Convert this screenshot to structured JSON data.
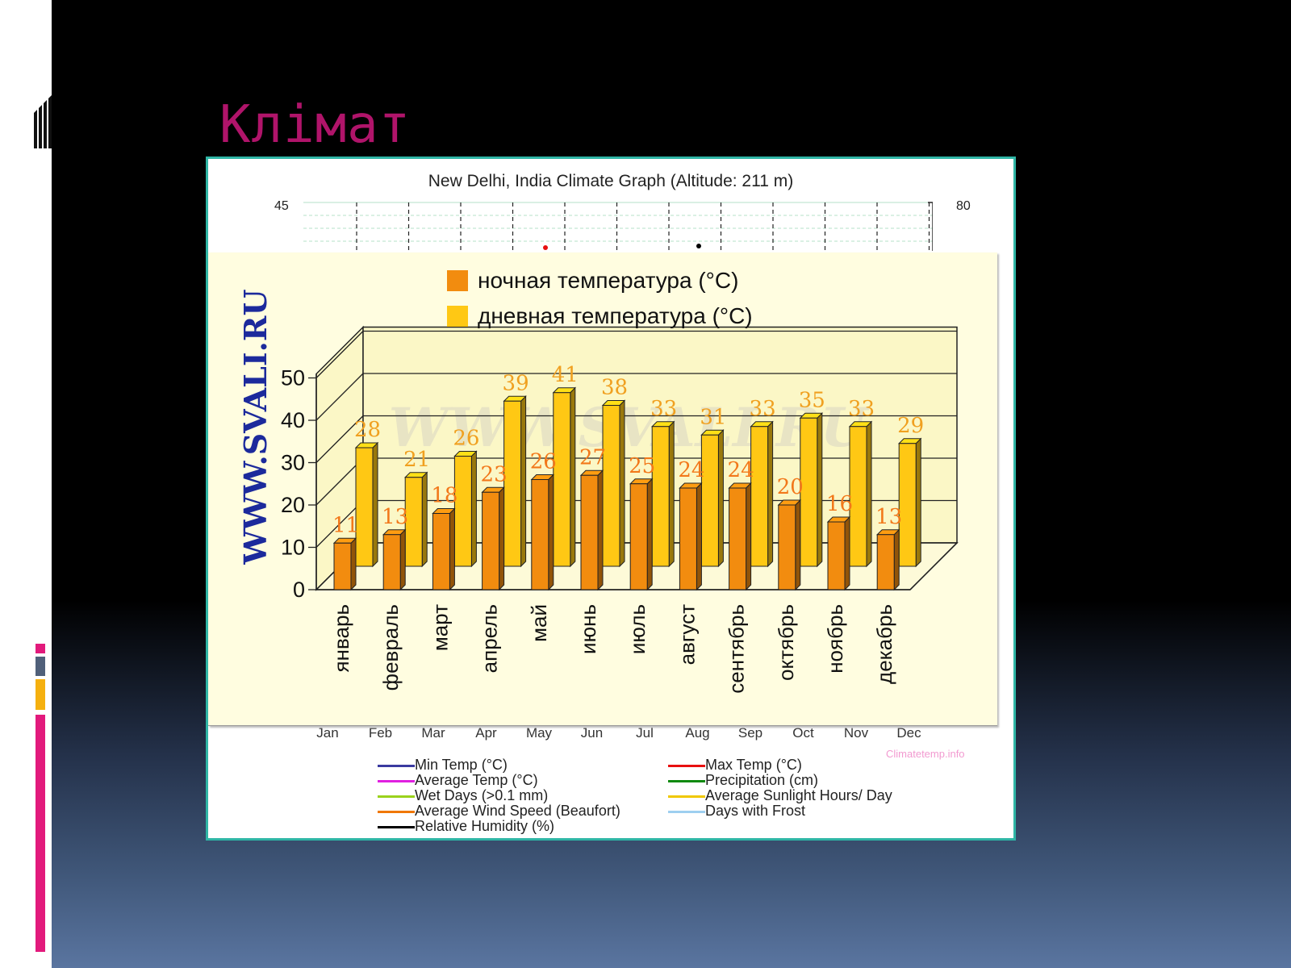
{
  "slide": {
    "title": "Клімат"
  },
  "background_graph": {
    "title": "New Delhi, India Climate Graph (Altitude: 211 m)",
    "y_left_top": "45",
    "y_right_top": "80",
    "months": [
      "Jan",
      "Feb",
      "Mar",
      "Apr",
      "May",
      "Jun",
      "Jul",
      "Aug",
      "Sep",
      "Oct",
      "Nov",
      "Dec"
    ],
    "credit": "Climatetemp.info",
    "legend": [
      {
        "label": "Min Temp (°C)",
        "color": "#3a3aa0"
      },
      {
        "label": "Max Temp (°C)",
        "color": "#e81010"
      },
      {
        "label": "Average Temp (°C)",
        "color": "#e020e0"
      },
      {
        "label": "Precipitation (cm)",
        "color": "#108a10"
      },
      {
        "label": "Wet Days (>0.1 mm)",
        "color": "#9ad21c"
      },
      {
        "label": "Average Sunlight Hours/ Day",
        "color": "#f0c800"
      },
      {
        "label": "Average Wind Speed (Beaufort)",
        "color": "#f07800"
      },
      {
        "label": "Days with Frost",
        "color": "#9ecff0"
      },
      {
        "label": "Relative Humidity (%)",
        "color": "#000000"
      }
    ]
  },
  "chart_data": {
    "type": "bar",
    "watermark": "WWW.SVALI.RU",
    "categories": [
      "январь",
      "февраль",
      "март",
      "апрель",
      "май",
      "июнь",
      "июль",
      "август",
      "сентябрь",
      "октябрь",
      "ноябрь",
      "декабрь"
    ],
    "series": [
      {
        "name": "ночная температура (°C)",
        "color": "#f28c0f",
        "values": [
          11,
          13,
          18,
          23,
          26,
          27,
          25,
          24,
          24,
          20,
          16,
          13
        ]
      },
      {
        "name": "дневная температура (°C)",
        "color": "#ffc814",
        "values": [
          28,
          21,
          26,
          39,
          41,
          38,
          33,
          31,
          33,
          35,
          33,
          29
        ]
      }
    ],
    "ylim": [
      0,
      50
    ],
    "yticks": [
      "0",
      "10",
      "20",
      "30",
      "40",
      "50"
    ],
    "legend_placement": "top-center",
    "grid": true
  }
}
